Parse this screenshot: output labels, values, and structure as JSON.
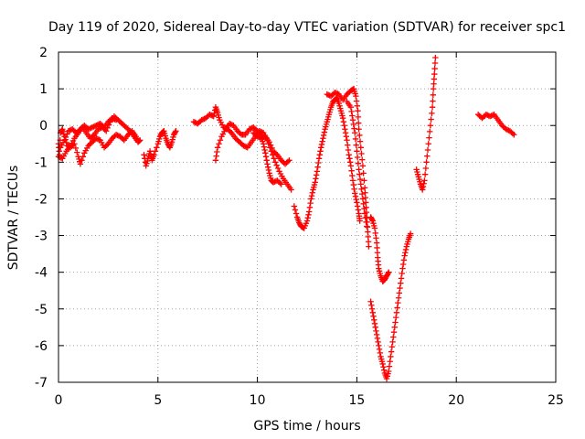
{
  "chart_data": {
    "type": "scatter",
    "title": "Day 119 of 2020, Sidereal Day-to-day VTEC variation (SDTVAR) for receiver spc1",
    "xlabel": "GPS time / hours",
    "ylabel": "SDTVAR / TECUs",
    "xlim": [
      0,
      25
    ],
    "ylim": [
      -7,
      2
    ],
    "xticks": [
      "0",
      "5",
      "10",
      "15",
      "20",
      "25"
    ],
    "yticks": [
      "2",
      "1",
      "0",
      "-1",
      "-2",
      "-3",
      "-4",
      "-5",
      "-6",
      "-7"
    ],
    "grid": true,
    "marker": "+",
    "color": "#ff0000",
    "segments": [
      [
        [
          0.0,
          -0.5
        ],
        [
          0.05,
          -0.8
        ],
        [
          0.1,
          -0.2
        ],
        [
          0.2,
          -0.1
        ],
        [
          0.3,
          -0.3
        ],
        [
          0.45,
          -0.55
        ],
        [
          0.6,
          -0.6
        ],
        [
          0.8,
          -0.5
        ],
        [
          1.0,
          -0.85
        ],
        [
          1.1,
          -1.05
        ],
        [
          1.3,
          -0.75
        ],
        [
          1.5,
          -0.55
        ],
        [
          1.7,
          -0.45
        ],
        [
          1.9,
          -0.35
        ],
        [
          2.1,
          -0.4
        ],
        [
          2.3,
          -0.6
        ],
        [
          2.5,
          -0.5
        ],
        [
          2.7,
          -0.35
        ],
        [
          2.9,
          -0.25
        ],
        [
          3.1,
          -0.3
        ],
        [
          3.3,
          -0.4
        ],
        [
          3.5,
          -0.25
        ],
        [
          3.7,
          -0.15
        ],
        [
          3.9,
          -0.3
        ],
        [
          4.0,
          -0.45
        ]
      ],
      [
        [
          0.0,
          -0.85
        ],
        [
          0.2,
          -0.9
        ],
        [
          0.4,
          -0.7
        ],
        [
          0.6,
          -0.55
        ],
        [
          0.8,
          -0.35
        ],
        [
          1.0,
          -0.2
        ],
        [
          1.2,
          -0.05
        ],
        [
          1.4,
          -0.2
        ],
        [
          1.6,
          -0.35
        ],
        [
          1.8,
          -0.25
        ],
        [
          2.0,
          -0.1
        ],
        [
          2.2,
          -0.05
        ],
        [
          2.4,
          -0.15
        ],
        [
          2.6,
          0.1
        ],
        [
          2.8,
          0.25
        ],
        [
          3.0,
          0.15
        ],
        [
          3.2,
          0.05
        ],
        [
          3.4,
          -0.05
        ],
        [
          3.6,
          -0.15
        ],
        [
          3.8,
          -0.3
        ],
        [
          4.0,
          -0.45
        ],
        [
          4.1,
          -0.4
        ]
      ],
      [
        [
          0.1,
          -0.6
        ],
        [
          0.3,
          -0.4
        ],
        [
          0.5,
          -0.15
        ],
        [
          0.7,
          -0.1
        ],
        [
          0.9,
          -0.2
        ],
        [
          1.1,
          -0.1
        ],
        [
          1.3,
          0.0
        ],
        [
          1.5,
          -0.1
        ],
        [
          1.7,
          -0.05
        ],
        [
          1.9,
          0.0
        ],
        [
          2.1,
          0.05
        ],
        [
          2.3,
          -0.05
        ],
        [
          2.5,
          0.1
        ],
        [
          2.7,
          0.2
        ],
        [
          2.9,
          0.15
        ]
      ],
      [
        [
          4.3,
          -0.8
        ],
        [
          4.4,
          -1.1
        ],
        [
          4.5,
          -0.9
        ],
        [
          4.6,
          -0.7
        ],
        [
          4.7,
          -0.95
        ],
        [
          4.8,
          -0.8
        ],
        [
          5.0,
          -0.5
        ],
        [
          5.1,
          -0.3
        ],
        [
          5.2,
          -0.2
        ],
        [
          5.3,
          -0.15
        ],
        [
          5.4,
          -0.35
        ],
        [
          5.5,
          -0.5
        ],
        [
          5.6,
          -0.6
        ],
        [
          5.7,
          -0.45
        ],
        [
          5.8,
          -0.25
        ],
        [
          5.9,
          -0.15
        ]
      ],
      [
        [
          6.8,
          0.1
        ],
        [
          7.0,
          0.05
        ],
        [
          7.2,
          0.15
        ],
        [
          7.4,
          0.2
        ],
        [
          7.6,
          0.3
        ],
        [
          7.8,
          0.25
        ],
        [
          7.9,
          0.5
        ],
        [
          8.0,
          0.35
        ],
        [
          8.1,
          0.15
        ],
        [
          8.3,
          -0.05
        ],
        [
          8.5,
          -0.1
        ],
        [
          8.7,
          -0.2
        ],
        [
          8.9,
          -0.35
        ],
        [
          9.1,
          -0.45
        ],
        [
          9.3,
          -0.55
        ],
        [
          9.5,
          -0.6
        ],
        [
          9.7,
          -0.45
        ],
        [
          9.9,
          -0.3
        ],
        [
          10.1,
          -0.15
        ],
        [
          10.3,
          -0.2
        ],
        [
          10.5,
          -0.4
        ],
        [
          10.7,
          -0.7
        ],
        [
          10.9,
          -1.0
        ],
        [
          11.1,
          -1.25
        ],
        [
          11.3,
          -1.45
        ],
        [
          11.5,
          -1.6
        ],
        [
          11.7,
          -1.75
        ]
      ],
      [
        [
          7.9,
          -0.95
        ],
        [
          8.0,
          -0.6
        ],
        [
          8.2,
          -0.3
        ],
        [
          8.4,
          -0.1
        ],
        [
          8.6,
          0.05
        ],
        [
          8.8,
          0.0
        ],
        [
          9.0,
          -0.15
        ],
        [
          9.2,
          -0.25
        ],
        [
          9.4,
          -0.25
        ],
        [
          9.6,
          -0.1
        ],
        [
          9.8,
          -0.05
        ],
        [
          10.0,
          -0.15
        ],
        [
          10.2,
          -0.3
        ],
        [
          10.3,
          -0.5
        ],
        [
          10.4,
          -0.75
        ],
        [
          10.5,
          -1.05
        ],
        [
          10.6,
          -1.3
        ],
        [
          10.7,
          -1.5
        ],
        [
          10.8,
          -1.55
        ],
        [
          11.0,
          -1.5
        ],
        [
          11.2,
          -1.6
        ]
      ],
      [
        [
          9.8,
          -0.2
        ],
        [
          10.0,
          -0.3
        ],
        [
          10.2,
          -0.35
        ],
        [
          10.4,
          -0.3
        ],
        [
          10.6,
          -0.45
        ],
        [
          10.8,
          -0.7
        ],
        [
          11.0,
          -0.8
        ],
        [
          11.2,
          -0.95
        ],
        [
          11.4,
          -1.05
        ],
        [
          11.6,
          -0.95
        ]
      ],
      [
        [
          11.85,
          -2.2
        ],
        [
          12.0,
          -2.5
        ],
        [
          12.1,
          -2.65
        ],
        [
          12.2,
          -2.75
        ],
        [
          12.35,
          -2.8
        ],
        [
          12.5,
          -2.6
        ],
        [
          12.6,
          -2.35
        ],
        [
          12.7,
          -2.0
        ],
        [
          12.8,
          -1.75
        ],
        [
          12.9,
          -1.55
        ],
        [
          13.0,
          -1.25
        ],
        [
          13.1,
          -0.9
        ],
        [
          13.2,
          -0.6
        ],
        [
          13.3,
          -0.35
        ],
        [
          13.4,
          -0.1
        ],
        [
          13.5,
          0.1
        ],
        [
          13.6,
          0.3
        ],
        [
          13.7,
          0.5
        ],
        [
          13.8,
          0.65
        ],
        [
          13.9,
          0.7
        ],
        [
          14.0,
          0.75
        ],
        [
          14.1,
          0.6
        ],
        [
          14.2,
          0.4
        ],
        [
          14.3,
          0.2
        ],
        [
          14.4,
          -0.1
        ],
        [
          14.5,
          -0.4
        ],
        [
          14.6,
          -0.8
        ],
        [
          14.7,
          -1.1
        ],
        [
          14.8,
          -1.5
        ],
        [
          14.9,
          -1.85
        ],
        [
          15.0,
          -2.1
        ],
        [
          15.1,
          -2.4
        ],
        [
          15.15,
          -2.6
        ]
      ],
      [
        [
          13.5,
          0.85
        ],
        [
          13.7,
          0.8
        ],
        [
          13.9,
          0.9
        ],
        [
          14.1,
          0.85
        ],
        [
          14.3,
          0.7
        ],
        [
          14.5,
          0.85
        ],
        [
          14.7,
          0.95
        ],
        [
          14.85,
          1.0
        ],
        [
          14.95,
          0.8
        ],
        [
          15.05,
          0.4
        ],
        [
          15.1,
          -0.1
        ],
        [
          15.2,
          -0.6
        ],
        [
          15.3,
          -1.1
        ],
        [
          15.4,
          -1.7
        ],
        [
          15.45,
          -2.1
        ],
        [
          15.5,
          -2.5
        ],
        [
          15.55,
          -2.9
        ],
        [
          15.6,
          -3.3
        ]
      ],
      [
        [
          14.5,
          0.65
        ],
        [
          14.7,
          0.5
        ],
        [
          14.8,
          0.15
        ],
        [
          14.9,
          -0.2
        ],
        [
          15.0,
          -0.7
        ],
        [
          15.1,
          -1.2
        ],
        [
          15.2,
          -1.6
        ],
        [
          15.3,
          -2.0
        ],
        [
          15.4,
          -2.4
        ],
        [
          15.5,
          -2.75
        ]
      ],
      [
        [
          15.7,
          -2.5
        ],
        [
          15.8,
          -2.6
        ],
        [
          15.9,
          -2.8
        ],
        [
          16.0,
          -3.2
        ],
        [
          16.05,
          -3.6
        ],
        [
          16.1,
          -3.9
        ],
        [
          16.2,
          -4.1
        ],
        [
          16.3,
          -4.25
        ],
        [
          16.4,
          -4.2
        ],
        [
          16.5,
          -4.1
        ],
        [
          16.6,
          -4.0
        ]
      ],
      [
        [
          15.7,
          -4.8
        ],
        [
          15.8,
          -5.1
        ],
        [
          15.9,
          -5.4
        ],
        [
          16.0,
          -5.7
        ],
        [
          16.1,
          -6.0
        ],
        [
          16.2,
          -6.3
        ],
        [
          16.3,
          -6.5
        ],
        [
          16.4,
          -6.75
        ],
        [
          16.5,
          -6.9
        ],
        [
          16.6,
          -6.7
        ],
        [
          16.7,
          -6.3
        ],
        [
          16.8,
          -5.9
        ],
        [
          16.9,
          -5.5
        ],
        [
          17.0,
          -5.1
        ],
        [
          17.1,
          -4.7
        ],
        [
          17.2,
          -4.3
        ],
        [
          17.3,
          -3.9
        ],
        [
          17.4,
          -3.55
        ],
        [
          17.5,
          -3.3
        ],
        [
          17.6,
          -3.1
        ],
        [
          17.7,
          -2.95
        ]
      ],
      [
        [
          18.0,
          -1.2
        ],
        [
          18.1,
          -1.4
        ],
        [
          18.2,
          -1.6
        ],
        [
          18.3,
          -1.75
        ],
        [
          18.4,
          -1.5
        ],
        [
          18.5,
          -1.0
        ],
        [
          18.6,
          -0.5
        ],
        [
          18.7,
          0.0
        ],
        [
          18.8,
          0.5
        ],
        [
          18.85,
          1.0
        ],
        [
          18.9,
          1.4
        ],
        [
          18.95,
          1.85
        ]
      ],
      [
        [
          21.1,
          0.3
        ],
        [
          21.3,
          0.2
        ],
        [
          21.5,
          0.3
        ],
        [
          21.7,
          0.25
        ],
        [
          21.9,
          0.3
        ],
        [
          22.1,
          0.15
        ],
        [
          22.3,
          0.0
        ],
        [
          22.5,
          -0.1
        ],
        [
          22.7,
          -0.15
        ],
        [
          22.9,
          -0.25
        ]
      ]
    ]
  }
}
